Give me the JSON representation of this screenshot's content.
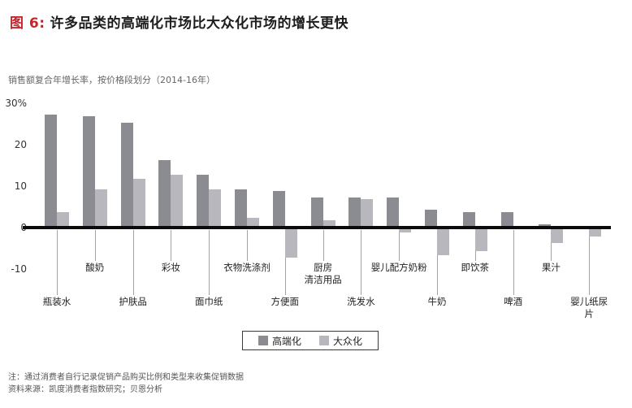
{
  "title": {
    "figure_label": "图 6:",
    "text": "许多品类的高端化市场比大众化市场的增长更快"
  },
  "subtitle": "销售额复合年增长率，按价格段划分（2014-16年）",
  "chart_data": {
    "type": "bar",
    "title": "许多品类的高端化市场比大众化市场的增长更快",
    "subtitle": "销售额复合年增长率，按价格段划分（2014-16年）",
    "categories": [
      "瓶装水",
      "酸奶",
      "护肤品",
      "彩妆",
      "面巾纸",
      "衣物洗涤剂",
      "方便面",
      "厨房清洁用品",
      "洗发水",
      "婴儿配方奶粉",
      "牛奶",
      "即饮茶",
      "啤酒",
      "果汁",
      "婴儿纸尿片"
    ],
    "category_display": [
      "瓶装水",
      "酸奶",
      "护肤品",
      "彩妆",
      "面巾纸",
      "衣物洗涤剂",
      "方便面",
      "厨房\n清洁用品",
      "洗发水",
      "婴儿配方奶粉",
      "牛奶",
      "即饮茶",
      "啤酒",
      "果汁",
      "婴儿纸尿片"
    ],
    "label_rows": [
      2,
      1,
      2,
      1,
      2,
      1,
      2,
      1,
      2,
      1,
      2,
      1,
      2,
      1,
      2
    ],
    "series": [
      {
        "name": "高端化",
        "values": [
          27.5,
          27,
          25.5,
          16.5,
          13,
          9.5,
          9,
          7.5,
          7.5,
          7.5,
          4.5,
          4,
          4,
          1,
          0.5
        ]
      },
      {
        "name": "大众化",
        "values": [
          4,
          9.5,
          12,
          13,
          9.5,
          2.5,
          -7,
          2,
          7,
          -1,
          -6.5,
          -5.5,
          0,
          -3.5,
          -2
        ]
      }
    ],
    "xlabel": "",
    "ylabel": "销售额复合年增长率（%）",
    "ylim": [
      -10,
      30
    ],
    "yticks": [
      "30%",
      "20",
      "10",
      "0",
      "-10"
    ],
    "ytick_values": [
      30,
      20,
      10,
      0,
      -10
    ],
    "grid": "off",
    "legend_position": "bottom"
  },
  "legend": {
    "items": [
      {
        "label": "高端化"
      },
      {
        "label": "大众化"
      }
    ]
  },
  "footnotes": [
    "注：通过消费者自行记录促销产品购买比例和类型来收集促销数据",
    "资料来源：凯度消费者指数研究；贝恩分析"
  ],
  "colors": {
    "premium": "#8b8b92",
    "mass": "#b7b7bd",
    "accent_red": "#c8232c",
    "axis": "#0b0b0b"
  }
}
